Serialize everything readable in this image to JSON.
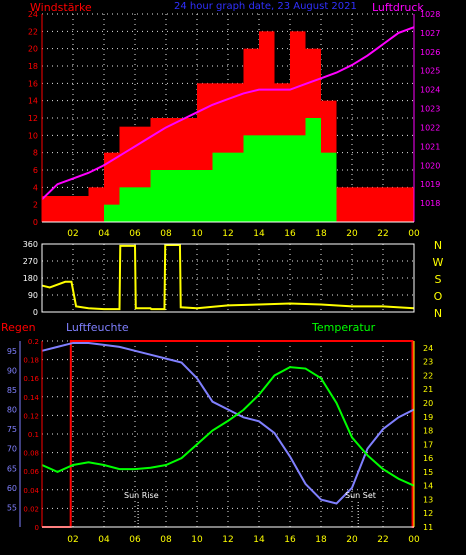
{
  "header": {
    "left_title": "Windstärke",
    "center_title": "24 hour graph date, 23 August 2021",
    "right_title": "Luftdruck"
  },
  "colors": {
    "wind_gust": "#ff0000",
    "wind_avg": "#00ff00",
    "pressure": "#ff00ff",
    "wind_dir": "#ffff00",
    "humidity": "#8080ff",
    "temperature": "#00ff00",
    "rain": "#ff0000",
    "axis_yellow": "#ffff00",
    "axis_red": "#ff0000"
  },
  "chart_data": [
    {
      "type": "bar",
      "title": "Windstärke",
      "right_axis_title": "Luftdruck",
      "x_ticks": [
        "02",
        "04",
        "06",
        "08",
        "10",
        "12",
        "14",
        "16",
        "18",
        "20",
        "22",
        "00"
      ],
      "ylim": [
        0,
        24
      ],
      "y_ticks": [
        "0",
        "2",
        "4",
        "6",
        "8",
        "10",
        "12",
        "14",
        "16",
        "18",
        "20",
        "22",
        "24"
      ],
      "ylim_right": [
        1017,
        1028
      ],
      "y_ticks_right": [
        "1018",
        "1019",
        "1020",
        "1021",
        "1022",
        "1023",
        "1024",
        "1025",
        "1026",
        "1027",
        "1028"
      ],
      "grid": true,
      "series": [
        {
          "name": "Windstärke",
          "type": "bar",
          "x": [
            0,
            1,
            2,
            3,
            4,
            5,
            6,
            7,
            8,
            9,
            10,
            11,
            12,
            13,
            14,
            15,
            16,
            17,
            18,
            19,
            20,
            21,
            22,
            23
          ],
          "gust": [
            3,
            3,
            3,
            4,
            8,
            11,
            11,
            12,
            12,
            12,
            16,
            16,
            16,
            20,
            22,
            16,
            22,
            20,
            14,
            4,
            4,
            4,
            4,
            4
          ],
          "avg": [
            0,
            0,
            0,
            0,
            2,
            4,
            4,
            6,
            6,
            6,
            6,
            8,
            8,
            10,
            10,
            10,
            10,
            12,
            8,
            0,
            0,
            0,
            0,
            0
          ]
        },
        {
          "name": "Luftdruck",
          "type": "line",
          "x": [
            0,
            1,
            2,
            3,
            4,
            5,
            6,
            7,
            8,
            9,
            10,
            11,
            12,
            13,
            14,
            15,
            16,
            17,
            18,
            19,
            20,
            21,
            22,
            23,
            24
          ],
          "y": [
            1018.2,
            1019.0,
            1019.3,
            1019.6,
            1020.0,
            1020.5,
            1021.0,
            1021.5,
            1022.0,
            1022.4,
            1022.8,
            1023.2,
            1023.5,
            1023.8,
            1024.0,
            1024.0,
            1024.0,
            1024.3,
            1024.6,
            1024.9,
            1025.3,
            1025.8,
            1026.4,
            1027.0,
            1027.3
          ]
        }
      ]
    },
    {
      "type": "line",
      "title": "",
      "right_letters": [
        "N",
        "W",
        "S",
        "O",
        "N"
      ],
      "ylim": [
        0,
        360
      ],
      "y_ticks": [
        "0",
        "90",
        "180",
        "270",
        "360"
      ],
      "x_ticks": [
        "02",
        "04",
        "06",
        "08",
        "10",
        "12",
        "14",
        "16",
        "18",
        "20",
        "22",
        "00"
      ],
      "grid": true,
      "series": [
        {
          "name": "Windrichtung",
          "x": [
            0,
            0.5,
            1.5,
            1.9,
            2.2,
            3.0,
            4.0,
            5.0,
            5.05,
            6.0,
            6.05,
            7.0,
            7.05,
            7.9,
            7.95,
            8.9,
            8.95,
            10.0,
            12.0,
            14.0,
            16.0,
            18.0,
            20.0,
            22.0,
            24.0
          ],
          "y": [
            140,
            130,
            160,
            160,
            30,
            20,
            15,
            15,
            350,
            350,
            20,
            20,
            15,
            15,
            355,
            355,
            25,
            20,
            35,
            40,
            45,
            40,
            30,
            30,
            20
          ]
        }
      ]
    },
    {
      "type": "line",
      "title": "",
      "left_axis_title_1": "Regen",
      "left_axis_title_2": "Luftfeuchte",
      "right_axis_title": "Temperatur",
      "x_ticks": [
        "02",
        "04",
        "06",
        "08",
        "10",
        "12",
        "14",
        "16",
        "18",
        "20",
        "22",
        "00"
      ],
      "annotations": [
        "Sun Rise",
        "Sun Set"
      ],
      "rain_axis": {
        "ylim": [
          0,
          0.2
        ],
        "ticks": [
          "0",
          "0.02",
          "0.04",
          "0.06",
          "0.08",
          "0.1",
          "0.12",
          "0.14",
          "0.16",
          "0.18",
          "0.2"
        ]
      },
      "humidity_axis": {
        "ylim": [
          50,
          97.5
        ],
        "ticks": [
          "55",
          "60",
          "65",
          "70",
          "75",
          "80",
          "85",
          "90",
          "95"
        ]
      },
      "temperature_axis": {
        "ylim": [
          11,
          24.5
        ],
        "ticks": [
          "11",
          "12",
          "13",
          "14",
          "15",
          "16",
          "17",
          "18",
          "19",
          "20",
          "21",
          "22",
          "23",
          "24"
        ]
      },
      "grid": true,
      "series": [
        {
          "name": "Luftfeuchte",
          "x": [
            0,
            1,
            2,
            3,
            4,
            5,
            6,
            7,
            8,
            9,
            10,
            11,
            12,
            13,
            14,
            15,
            16,
            17,
            18,
            19,
            20,
            21,
            22,
            23,
            24
          ],
          "y": [
            95,
            96,
            97,
            97,
            96.5,
            96,
            95,
            94,
            93,
            92,
            88,
            82,
            80,
            78,
            77,
            74,
            68,
            61,
            57,
            56,
            60,
            70,
            75,
            78,
            80
          ]
        },
        {
          "name": "Temperatur",
          "x": [
            0,
            1,
            2,
            3,
            4,
            5,
            6,
            7,
            8,
            9,
            10,
            11,
            12,
            13,
            14,
            15,
            16,
            17,
            18,
            19,
            20,
            21,
            22,
            23,
            24
          ],
          "y": [
            15.5,
            15,
            15.5,
            15.7,
            15.5,
            15.2,
            15.2,
            15.3,
            15.5,
            16.0,
            17.0,
            18.0,
            18.7,
            19.5,
            20.6,
            22.0,
            22.6,
            22.5,
            21.8,
            20.0,
            17.5,
            16.2,
            15.2,
            14.5,
            14.0
          ]
        },
        {
          "name": "Regen",
          "x": [
            0,
            1.85,
            1.86,
            23.9,
            23.91,
            24
          ],
          "y": [
            0,
            0,
            0.2,
            0.2,
            0,
            0
          ]
        }
      ]
    }
  ]
}
